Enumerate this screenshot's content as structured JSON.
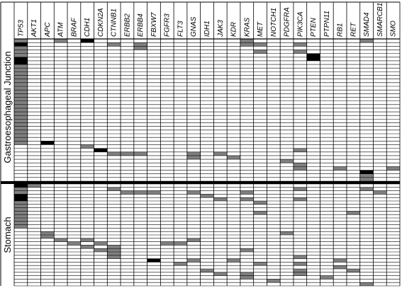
{
  "chart_data": {
    "type": "heatmap",
    "genes": [
      "TP53",
      "AKT1",
      "APC",
      "ATM",
      "BRAF",
      "CDH1",
      "CDKN2A",
      "CTNNB1",
      "ERBB2",
      "ERBB4",
      "FBXW7",
      "FGFR3",
      "FLT3",
      "GNAS",
      "IDH1",
      "JAK3",
      "KDR",
      "KRAS",
      "MET",
      "NOTCH1",
      "PDGFRA",
      "PIK3CA",
      "PTEN",
      "PTPN11",
      "RB1",
      "RET",
      "SMAD4",
      "SMARCB1",
      "SMO"
    ],
    "groups": [
      {
        "name": "Gastroesophageal Junction",
        "rows": 39
      },
      {
        "name": "Stomach",
        "rows": 30
      }
    ],
    "colors": {
      "mutation": "#808080",
      "strong": "#000000",
      "background": "#ffffff",
      "grid": "#000000"
    },
    "cells": [
      {
        "gene": "TP53",
        "group": 0,
        "from": 0,
        "to": 28,
        "level": "mutation"
      },
      {
        "gene": "TP53",
        "group": 0,
        "from": 1,
        "to": 1,
        "level": "strong"
      },
      {
        "gene": "TP53",
        "group": 0,
        "from": 5,
        "to": 6,
        "level": "strong"
      },
      {
        "gene": "ATM",
        "group": 0,
        "from": 0,
        "to": 0,
        "level": "mutation"
      },
      {
        "gene": "CDH1",
        "group": 0,
        "from": 0,
        "to": 0,
        "level": "strong"
      },
      {
        "gene": "CTNNB1",
        "group": 0,
        "from": 1,
        "to": 1,
        "level": "mutation"
      },
      {
        "gene": "ERBB4",
        "group": 0,
        "from": 1,
        "to": 2,
        "level": "mutation"
      },
      {
        "gene": "KRAS",
        "group": 0,
        "from": 0,
        "to": 1,
        "level": "mutation"
      },
      {
        "gene": "MET",
        "group": 0,
        "from": 1,
        "to": 1,
        "level": "mutation"
      },
      {
        "gene": "MET",
        "group": 0,
        "from": 3,
        "to": 3,
        "level": "mutation"
      },
      {
        "gene": "PIK3CA",
        "group": 0,
        "from": 1,
        "to": 1,
        "level": "mutation"
      },
      {
        "gene": "PIK3CA",
        "group": 0,
        "from": 3,
        "to": 3,
        "level": "mutation"
      },
      {
        "gene": "PTEN",
        "group": 0,
        "from": 4,
        "to": 5,
        "level": "strong"
      },
      {
        "gene": "SMAD4",
        "group": 0,
        "from": 0,
        "to": 0,
        "level": "mutation"
      },
      {
        "gene": "APC",
        "group": 0,
        "from": 28,
        "to": 28,
        "level": "strong"
      },
      {
        "gene": "CDH1",
        "group": 0,
        "from": 29,
        "to": 29,
        "level": "mutation"
      },
      {
        "gene": "CDKN2A",
        "group": 0,
        "from": 30,
        "to": 30,
        "level": "strong"
      },
      {
        "gene": "CTNNB1",
        "group": 0,
        "from": 31,
        "to": 31,
        "level": "mutation"
      },
      {
        "gene": "ERBB2",
        "group": 0,
        "from": 31,
        "to": 31,
        "level": "mutation"
      },
      {
        "gene": "ERBB4",
        "group": 0,
        "from": 31,
        "to": 31,
        "level": "mutation"
      },
      {
        "gene": "GNAS",
        "group": 0,
        "from": 31,
        "to": 32,
        "level": "mutation"
      },
      {
        "gene": "JAK3",
        "group": 0,
        "from": 31,
        "to": 31,
        "level": "mutation"
      },
      {
        "gene": "KDR",
        "group": 0,
        "from": 32,
        "to": 32,
        "level": "mutation"
      },
      {
        "gene": "PDGFRA",
        "group": 0,
        "from": 33,
        "to": 33,
        "level": "mutation"
      },
      {
        "gene": "PIK3CA",
        "group": 0,
        "from": 30,
        "to": 30,
        "level": "mutation"
      },
      {
        "gene": "PIK3CA",
        "group": 0,
        "from": 34,
        "to": 35,
        "level": "mutation"
      },
      {
        "gene": "RB1",
        "group": 0,
        "from": 35,
        "to": 35,
        "level": "mutation"
      },
      {
        "gene": "SMAD4",
        "group": 0,
        "from": 36,
        "to": 36,
        "level": "strong"
      },
      {
        "gene": "SMAD4",
        "group": 0,
        "from": 37,
        "to": 38,
        "level": "mutation"
      },
      {
        "gene": "SMO",
        "group": 0,
        "from": 35,
        "to": 35,
        "level": "mutation"
      },
      {
        "gene": "TP53",
        "group": 1,
        "from": 0,
        "to": 12,
        "level": "mutation"
      },
      {
        "gene": "TP53",
        "group": 1,
        "from": 0,
        "to": 0,
        "level": "strong"
      },
      {
        "gene": "TP53",
        "group": 1,
        "from": 3,
        "to": 4,
        "level": "strong"
      },
      {
        "gene": "AKT1",
        "group": 1,
        "from": 0,
        "to": 0,
        "level": "mutation"
      },
      {
        "gene": "CTNNB1",
        "group": 1,
        "from": 1,
        "to": 1,
        "level": "mutation"
      },
      {
        "gene": "ERBB2",
        "group": 1,
        "from": 2,
        "to": 2,
        "level": "mutation"
      },
      {
        "gene": "ERBB4",
        "group": 1,
        "from": 2,
        "to": 2,
        "level": "mutation"
      },
      {
        "gene": "FBXW7",
        "group": 1,
        "from": 2,
        "to": 2,
        "level": "mutation"
      },
      {
        "gene": "GNAS",
        "group": 1,
        "from": 2,
        "to": 2,
        "level": "mutation"
      },
      {
        "gene": "IDH1",
        "group": 1,
        "from": 3,
        "to": 3,
        "level": "mutation"
      },
      {
        "gene": "JAK3",
        "group": 1,
        "from": 4,
        "to": 4,
        "level": "mutation"
      },
      {
        "gene": "KRAS",
        "group": 1,
        "from": 2,
        "to": 2,
        "level": "mutation"
      },
      {
        "gene": "KRAS",
        "group": 1,
        "from": 4,
        "to": 4,
        "level": "mutation"
      },
      {
        "gene": "MET",
        "group": 1,
        "from": 5,
        "to": 5,
        "level": "mutation"
      },
      {
        "gene": "MET",
        "group": 1,
        "from": 8,
        "to": 8,
        "level": "mutation"
      },
      {
        "gene": "PIK3CA",
        "group": 1,
        "from": 1,
        "to": 1,
        "level": "mutation"
      },
      {
        "gene": "PIK3CA",
        "group": 1,
        "from": 4,
        "to": 4,
        "level": "mutation"
      },
      {
        "gene": "RET",
        "group": 1,
        "from": 8,
        "to": 8,
        "level": "mutation"
      },
      {
        "gene": "SMAD4",
        "group": 1,
        "from": 1,
        "to": 1,
        "level": "mutation"
      },
      {
        "gene": "SMARCB1",
        "group": 1,
        "from": 2,
        "to": 2,
        "level": "mutation"
      },
      {
        "gene": "APC",
        "group": 1,
        "from": 14,
        "to": 15,
        "level": "mutation"
      },
      {
        "gene": "ATM",
        "group": 1,
        "from": 16,
        "to": 16,
        "level": "mutation"
      },
      {
        "gene": "BRAF",
        "group": 1,
        "from": 17,
        "to": 17,
        "level": "mutation"
      },
      {
        "gene": "CDH1",
        "group": 1,
        "from": 16,
        "to": 16,
        "level": "mutation"
      },
      {
        "gene": "CDH1",
        "group": 1,
        "from": 18,
        "to": 18,
        "level": "mutation"
      },
      {
        "gene": "CDKN2A",
        "group": 1,
        "from": 17,
        "to": 17,
        "level": "mutation"
      },
      {
        "gene": "CDKN2A",
        "group": 1,
        "from": 19,
        "to": 19,
        "level": "mutation"
      },
      {
        "gene": "CTNNB1",
        "group": 1,
        "from": 18,
        "to": 21,
        "level": "mutation"
      },
      {
        "gene": "FBXW7",
        "group": 1,
        "from": 22,
        "to": 22,
        "level": "strong"
      },
      {
        "gene": "FGFR3",
        "group": 1,
        "from": 17,
        "to": 17,
        "level": "mutation"
      },
      {
        "gene": "FLT3",
        "group": 1,
        "from": 17,
        "to": 17,
        "level": "mutation"
      },
      {
        "gene": "FLT3",
        "group": 1,
        "from": 23,
        "to": 23,
        "level": "mutation"
      },
      {
        "gene": "GNAS",
        "group": 1,
        "from": 16,
        "to": 16,
        "level": "mutation"
      },
      {
        "gene": "GNAS",
        "group": 1,
        "from": 22,
        "to": 22,
        "level": "mutation"
      },
      {
        "gene": "IDH1",
        "group": 1,
        "from": 25,
        "to": 25,
        "level": "mutation"
      },
      {
        "gene": "JAK3",
        "group": 1,
        "from": 26,
        "to": 26,
        "level": "mutation"
      },
      {
        "gene": "KDR",
        "group": 1,
        "from": 22,
        "to": 22,
        "level": "mutation"
      },
      {
        "gene": "KRAS",
        "group": 1,
        "from": 19,
        "to": 19,
        "level": "mutation"
      },
      {
        "gene": "KRAS",
        "group": 1,
        "from": 26,
        "to": 27,
        "level": "mutation"
      },
      {
        "gene": "MET",
        "group": 1,
        "from": 23,
        "to": 23,
        "level": "mutation"
      },
      {
        "gene": "NOTCH1",
        "group": 1,
        "from": 28,
        "to": 28,
        "level": "mutation"
      },
      {
        "gene": "PDGFRA",
        "group": 1,
        "from": 14,
        "to": 14,
        "level": "mutation"
      },
      {
        "gene": "PIK3CA",
        "group": 1,
        "from": 21,
        "to": 21,
        "level": "mutation"
      },
      {
        "gene": "PIK3CA",
        "group": 1,
        "from": 23,
        "to": 23,
        "level": "mutation"
      },
      {
        "gene": "PIK3CA",
        "group": 1,
        "from": 25,
        "to": 26,
        "level": "mutation"
      },
      {
        "gene": "PTPN11",
        "group": 1,
        "from": 27,
        "to": 27,
        "level": "mutation"
      },
      {
        "gene": "RB1",
        "group": 1,
        "from": 22,
        "to": 22,
        "level": "mutation"
      },
      {
        "gene": "RB1",
        "group": 1,
        "from": 24,
        "to": 24,
        "level": "mutation"
      },
      {
        "gene": "RET",
        "group": 1,
        "from": 25,
        "to": 25,
        "level": "mutation"
      },
      {
        "gene": "SMAD4",
        "group": 1,
        "from": 29,
        "to": 29,
        "level": "mutation"
      }
    ]
  }
}
